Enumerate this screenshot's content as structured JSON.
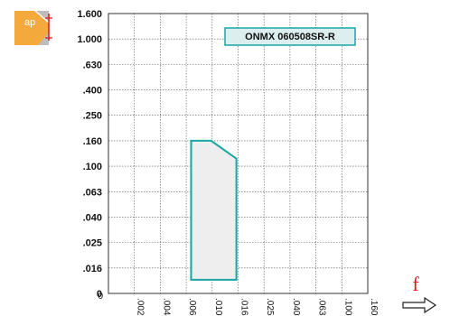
{
  "chart_data": {
    "type": "area",
    "title": "ONMX 060508SR-R",
    "y_axis_label": "ap",
    "x_axis_label": "f",
    "y_ticks": [
      "1.600",
      "1.000",
      ".630",
      ".400",
      ".250",
      ".160",
      ".100",
      ".063",
      ".040",
      ".025",
      ".016",
      "0"
    ],
    "x_ticks": [
      "0",
      ".0025",
      ".004",
      ".006",
      ".010",
      ".016",
      ".025",
      ".040",
      ".063",
      ".100",
      ".160"
    ],
    "region": {
      "name": "ONMX 060508SR-R",
      "points": [
        {
          "f": 0.0066,
          "ap": 0.013
        },
        {
          "f": 0.0066,
          "ap": 0.16
        },
        {
          "f": 0.0098,
          "ap": 0.16
        },
        {
          "f": 0.0155,
          "ap": 0.115
        },
        {
          "f": 0.0155,
          "ap": 0.013
        }
      ]
    },
    "grid": true,
    "colors": {
      "region_stroke": "#1aa6a0",
      "region_fill": "#eeeeee",
      "title_box_fill": "#dceeee",
      "accent": "#d7191c",
      "icon_fill": "#f3a93c"
    }
  },
  "icons": {
    "insert": "insert-depth-icon",
    "arrow": "feed-arrow-icon"
  }
}
